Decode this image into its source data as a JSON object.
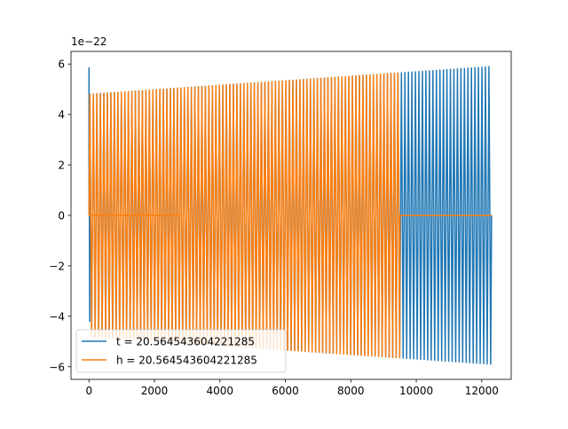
{
  "chart_data": {
    "type": "line",
    "title": "",
    "xlabel": "",
    "ylabel": "",
    "y_offset_label": "1e−22",
    "xlim": [
      -550,
      12900
    ],
    "ylim": [
      -6.5,
      6.5
    ],
    "x_ticks": [
      0,
      2000,
      4000,
      6000,
      8000,
      10000,
      12000
    ],
    "y_ticks": [
      -6,
      -4,
      -2,
      0,
      2,
      4,
      6
    ],
    "x_tick_labels": [
      "0",
      "2000",
      "4000",
      "6000",
      "8000",
      "10000",
      "12000"
    ],
    "y_tick_labels": [
      "−6",
      "−4",
      "−2",
      "0",
      "2",
      "4",
      "6"
    ],
    "grid": false,
    "legend_position": "lower-left",
    "series": [
      {
        "name": "t = 20.564543604221285",
        "color": "#1f77b4",
        "signal": "oscillation",
        "x_start": 0,
        "x_end": 12300,
        "amplitude_start": 4.8,
        "amplitude_end": 5.9,
        "initial_spike": 5.85,
        "cycles": 115
      },
      {
        "name": "h = 20.564543604221285",
        "color": "#ff7f0e",
        "signal": "oscillation_then_flat",
        "x_start": 0,
        "x_end": 12300,
        "osc_end_x": 9500,
        "amplitude_start": 4.8,
        "amplitude_end": 5.9,
        "cycles": 115
      }
    ]
  }
}
